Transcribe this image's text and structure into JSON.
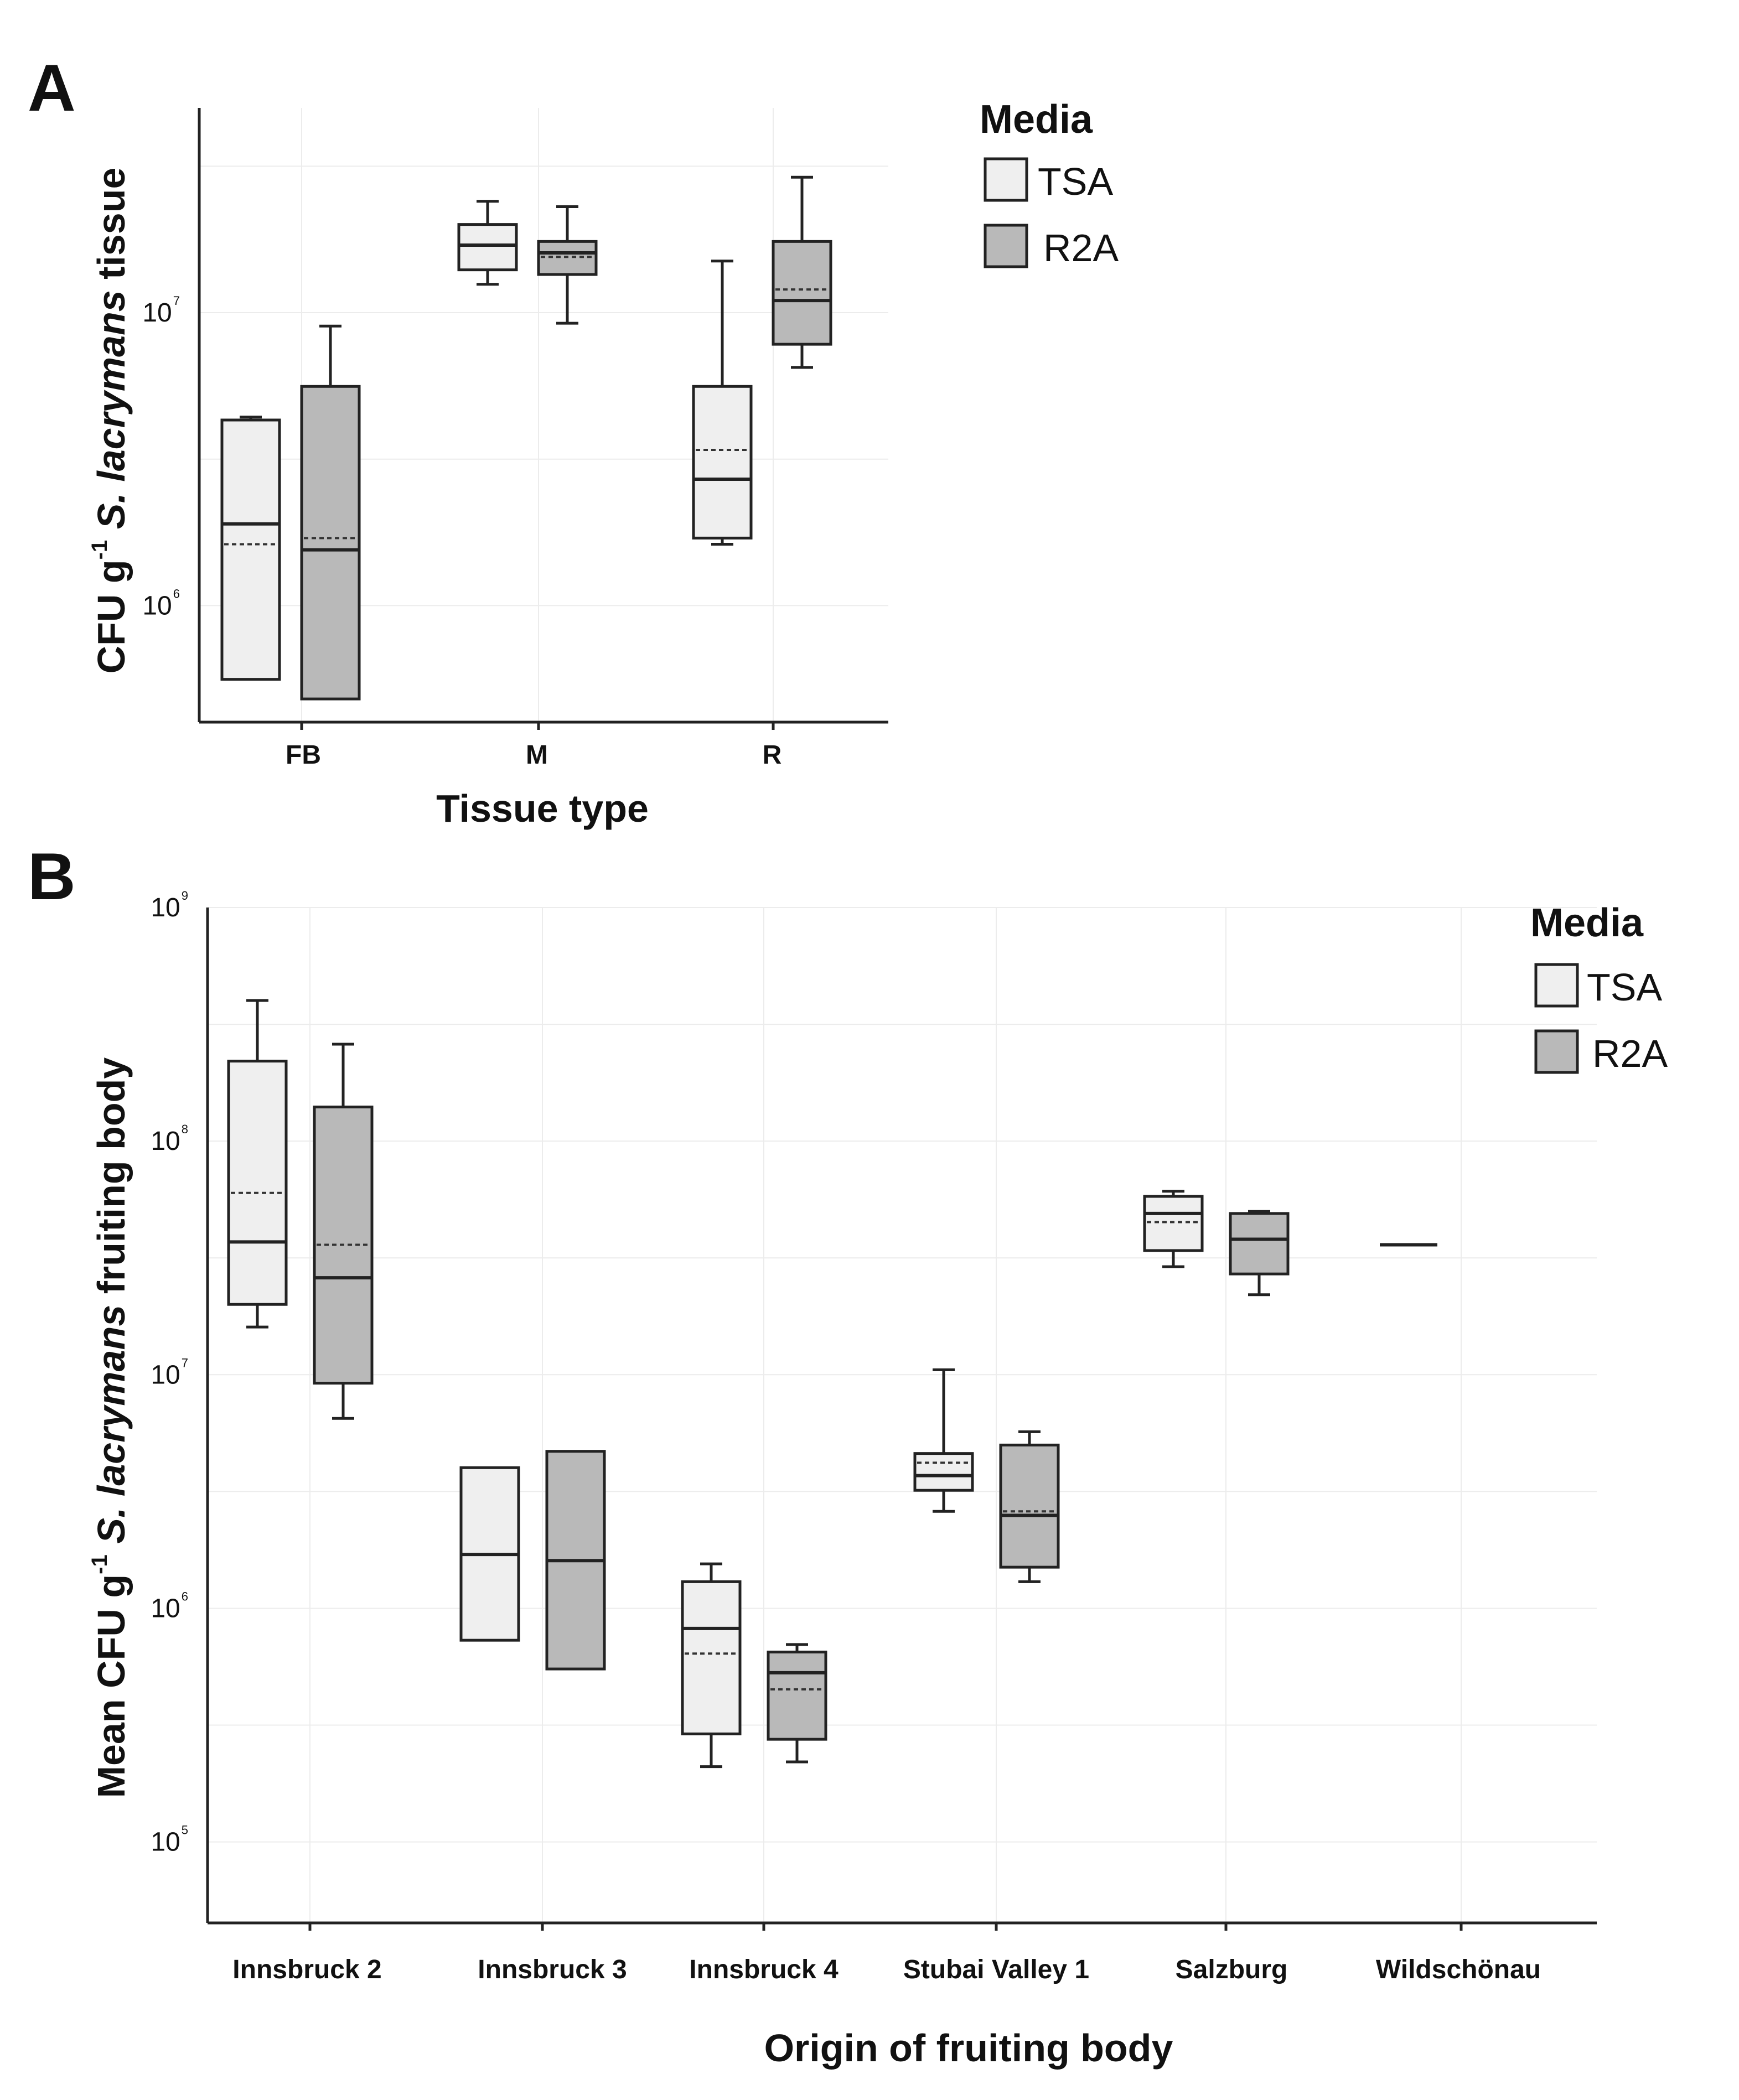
{
  "colors": {
    "TSA": "#efefef",
    "R2A": "#b9b9b9"
  },
  "chart_data": [
    {
      "type": "box",
      "panel": "A",
      "title": "",
      "xlabel": "Tissue type",
      "ylabel_parts": [
        "CFU g",
        "-1",
        " ",
        "S. lacrymans",
        " tissue"
      ],
      "yscale": "log10",
      "ylim": [
        400000,
        50000000
      ],
      "yticks": [
        {
          "base": "10",
          "exp": "6",
          "value": 1000000
        },
        {
          "base": "10",
          "exp": "7",
          "value": 10000000
        }
      ],
      "grid": true,
      "legend": {
        "title": "Media",
        "entries": [
          "TSA",
          "R2A"
        ],
        "position": "right"
      },
      "categories": [
        "FB",
        "M",
        "R"
      ],
      "series": [
        {
          "name": "TSA",
          "boxes": [
            {
              "lower_whisker": 560000,
              "q1": 560000,
              "median": 1900000,
              "mean": 1620000,
              "q3": 4300000,
              "upper_whisker": 4400000
            },
            {
              "lower_whisker": 12500000,
              "q1": 14000000,
              "median": 17000000,
              "mean": 17000000,
              "q3": 20000000,
              "upper_whisker": 24000000
            },
            {
              "lower_whisker": 1620000,
              "q1": 1700000,
              "median": 2700000,
              "mean": 3400000,
              "q3": 5600000,
              "upper_whisker": 15000000
            }
          ]
        },
        {
          "name": "R2A",
          "boxes": [
            {
              "lower_whisker": 480000,
              "q1": 480000,
              "median": 1550000,
              "mean": 1700000,
              "q3": 5600000,
              "upper_whisker": 9000000
            },
            {
              "lower_whisker": 9200000,
              "q1": 13500000,
              "median": 16000000,
              "mean": 15500000,
              "q3": 17500000,
              "upper_whisker": 23000000
            },
            {
              "lower_whisker": 6500000,
              "q1": 7800000,
              "median": 11000000,
              "mean": 12000000,
              "q3": 17500000,
              "upper_whisker": 29000000
            }
          ]
        }
      ]
    },
    {
      "type": "box",
      "panel": "B",
      "title": "",
      "xlabel": "Origin of fruiting body",
      "ylabel_parts": [
        "Mean CFU g",
        "-1",
        " ",
        "S. lacrymans",
        " fruiting body"
      ],
      "yscale": "log10",
      "ylim": [
        45000,
        1000000000
      ],
      "yticks": [
        {
          "base": "10",
          "exp": "5",
          "value": 100000
        },
        {
          "base": "10",
          "exp": "6",
          "value": 1000000
        },
        {
          "base": "10",
          "exp": "7",
          "value": 10000000
        },
        {
          "base": "10",
          "exp": "8",
          "value": 100000000
        },
        {
          "base": "10",
          "exp": "9",
          "value": 1000000000
        }
      ],
      "grid": true,
      "legend": {
        "title": "Media",
        "entries": [
          "TSA",
          "R2A"
        ],
        "position": "right"
      },
      "categories": [
        "Innsbruck 2",
        "Innsbruck 3",
        "Innsbruck 4",
        "Stubai Valley 1",
        "Salzburg",
        "Wildschönau"
      ],
      "series": [
        {
          "name": "TSA",
          "boxes": [
            {
              "lower_whisker": 16000000,
              "q1": 20000000,
              "median": 37000000,
              "mean": 60000000,
              "q3": 220000000,
              "upper_whisker": 400000000
            },
            {
              "lower_whisker": 730000,
              "q1": 730000,
              "median": 1700000,
              "mean": 1700000,
              "q3": 4000000,
              "upper_whisker": 4000000
            },
            {
              "lower_whisker": 210000,
              "q1": 290000,
              "median": 820000,
              "mean": 640000,
              "q3": 1300000,
              "upper_whisker": 1550000
            },
            {
              "lower_whisker": 2600000,
              "q1": 3200000,
              "median": 3700000,
              "mean": 4200000,
              "q3": 4600000,
              "upper_whisker": 10500000
            },
            {
              "lower_whisker": 29000000,
              "q1": 34000000,
              "median": 49000000,
              "mean": 45000000,
              "q3": 58000000,
              "upper_whisker": 61000000
            },
            {
              "lower_whisker": 36000000,
              "q1": 36000000,
              "median": 36000000,
              "mean": 36000000,
              "q3": 36000000,
              "upper_whisker": 36000000
            }
          ]
        },
        {
          "name": "R2A",
          "boxes": [
            {
              "lower_whisker": 6500000,
              "q1": 9200000,
              "median": 26000000,
              "mean": 36000000,
              "q3": 140000000,
              "upper_whisker": 260000000
            },
            {
              "lower_whisker": 550000,
              "q1": 550000,
              "median": 1600000,
              "mean": 1600000,
              "q3": 4700000,
              "upper_whisker": 4700000
            },
            {
              "lower_whisker": 220000,
              "q1": 275000,
              "median": 530000,
              "mean": 450000,
              "q3": 650000,
              "upper_whisker": 700000
            },
            {
              "lower_whisker": 1300000,
              "q1": 1500000,
              "median": 2500000,
              "mean": 2600000,
              "q3": 5000000,
              "upper_whisker": 5700000
            },
            {
              "lower_whisker": 22000000,
              "q1": 27000000,
              "median": 38000000,
              "mean": 38000000,
              "q3": 49000000,
              "upper_whisker": 50000000
            },
            null
          ]
        }
      ]
    }
  ]
}
